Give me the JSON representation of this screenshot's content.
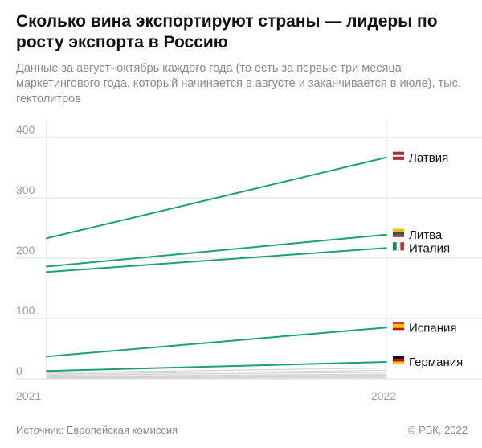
{
  "title": "Сколько вина экспортируют страны — лидеры по росту экспорта в Россию",
  "subtitle": "Данные за август–октябрь каждого года (то есть за первые три месяца маркетингового года, который начинается в августе и заканчивается в июле), тыс. гектолитров",
  "footer": {
    "source": "Источник: Европейская комиссия",
    "copyright": "© РБК, 2022"
  },
  "colors": {
    "accent": "#1aa273",
    "grid": "#dddddd",
    "minor_series": "#d4d4d4"
  },
  "chart_data": {
    "type": "line",
    "x": [
      "2021",
      "2022"
    ],
    "ylim": [
      0,
      400
    ],
    "yticks": [
      "0",
      "100",
      "200",
      "300",
      "400"
    ],
    "grid": true,
    "series": [
      {
        "name": "Латвия",
        "values": [
          233,
          367
        ],
        "flag": "latvia-flag-icon",
        "highlight": true
      },
      {
        "name": "Литва",
        "values": [
          186,
          239
        ],
        "flag": "lithuania-flag-icon",
        "highlight": true
      },
      {
        "name": "Италия",
        "values": [
          177,
          217
        ],
        "flag": "italy-flag-icon",
        "highlight": true
      },
      {
        "name": "Испания",
        "values": [
          37,
          85
        ],
        "flag": "spain-flag-icon",
        "highlight": true
      },
      {
        "name": "Германия",
        "values": [
          13,
          28
        ],
        "flag": "germany-flag-icon",
        "highlight": true
      },
      {
        "values": [
          10,
          18
        ],
        "highlight": false
      },
      {
        "values": [
          8,
          14
        ],
        "highlight": false
      },
      {
        "values": [
          6,
          11
        ],
        "highlight": false
      },
      {
        "values": [
          4,
          8
        ],
        "highlight": false
      },
      {
        "values": [
          3,
          6
        ],
        "highlight": false
      },
      {
        "values": [
          2,
          4
        ],
        "highlight": false
      },
      {
        "values": [
          1,
          2
        ],
        "highlight": false
      }
    ]
  }
}
